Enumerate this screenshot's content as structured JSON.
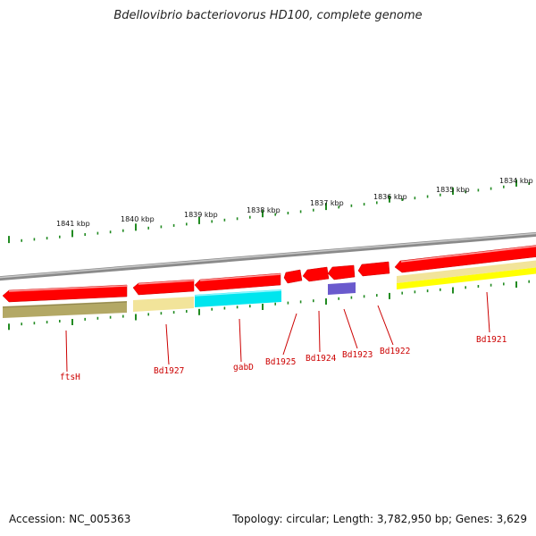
{
  "title": "Bdellovibrio bacteriovorus HD100, complete genome",
  "footer": {
    "accession": "Accession: NC_005363",
    "topology": "Topology: circular; Length: 3,782,950 bp; Genes: 3,629"
  },
  "scale_labels": [
    "1841 kbp",
    "1840 kbp",
    "1839 kbp",
    "1838 kbp",
    "1837 kbp",
    "1836 kbp",
    "1835 kbp",
    "1834 kbp"
  ],
  "gene_labels": [
    "ftsH",
    "Bd1927",
    "gabD",
    "Bd1925",
    "Bd1924",
    "Bd1923",
    "Bd1922",
    "Bd1921"
  ],
  "colors": {
    "backbone": "#8c8c8c",
    "forward_cds": "#ff0000",
    "reverse_cds": "#ff0000",
    "cog_olive": "#b3a865",
    "cog_khaki": "#f2e49a",
    "cog_cyan": "#00e5ee",
    "cog_purple": "#6a5acd",
    "cog_yellow": "#ffff00",
    "tick": "#228b22",
    "label": "#cc0000"
  }
}
